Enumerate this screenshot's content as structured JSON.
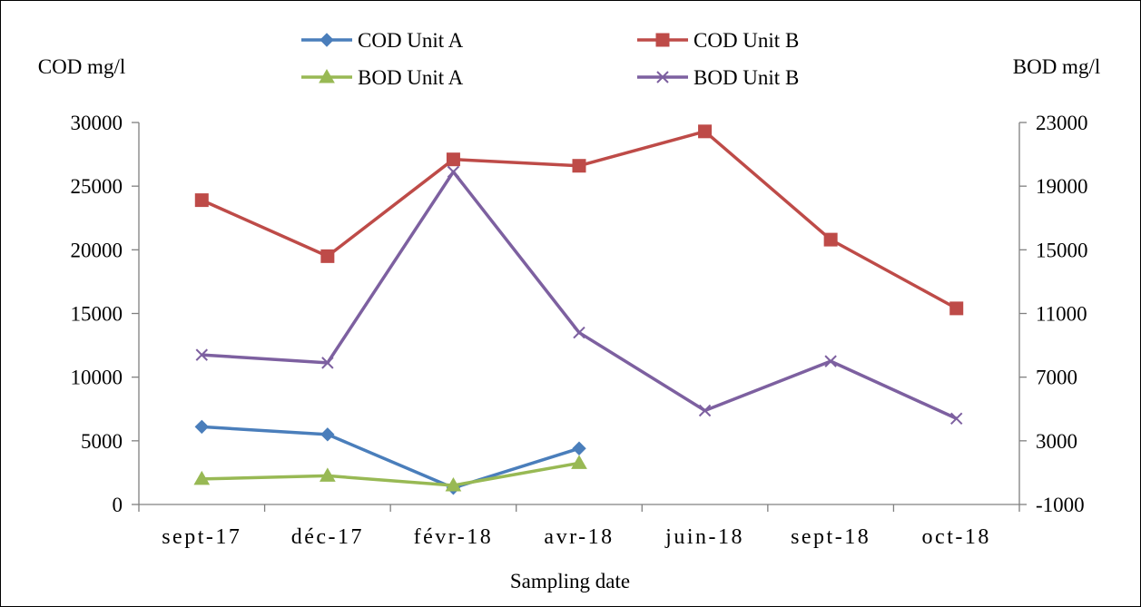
{
  "chart_data": {
    "type": "line",
    "xlabel": "Sampling date",
    "ylabel_left": "COD mg/l",
    "ylabel_right": "BOD mg/l",
    "categories": [
      "sept-17",
      "déc-17",
      "févr-18",
      "avr-18",
      "juin-18",
      "sept-18",
      "oct-18"
    ],
    "ylim_left": [
      0,
      30000
    ],
    "yticks_left": [
      "0",
      "5000",
      "10000",
      "15000",
      "20000",
      "25000",
      "30000"
    ],
    "ylim_right": [
      -1000,
      23000
    ],
    "yticks_right": [
      "-1000",
      "3000",
      "7000",
      "11000",
      "15000",
      "19000",
      "23000"
    ],
    "grid": false,
    "legend_position": "top",
    "series": [
      {
        "name": "COD Unit A",
        "axis": "left",
        "marker": "diamond",
        "color": "#4a7ebb",
        "values": [
          6100,
          5500,
          1300,
          4400,
          null,
          null,
          null
        ]
      },
      {
        "name": "COD Unit B",
        "axis": "left",
        "marker": "square",
        "color": "#be4b48",
        "values": [
          23900,
          19500,
          27100,
          26600,
          29300,
          20800,
          15400
        ]
      },
      {
        "name": "BOD Unit A",
        "axis": "right",
        "marker": "triangle",
        "color": "#98b954",
        "values": [
          600,
          800,
          200,
          1600,
          null,
          null,
          null
        ]
      },
      {
        "name": "BOD Unit B",
        "axis": "right",
        "marker": "x",
        "color": "#7d60a0",
        "values": [
          8400,
          7900,
          19900,
          9800,
          4900,
          8000,
          4400
        ]
      }
    ]
  }
}
